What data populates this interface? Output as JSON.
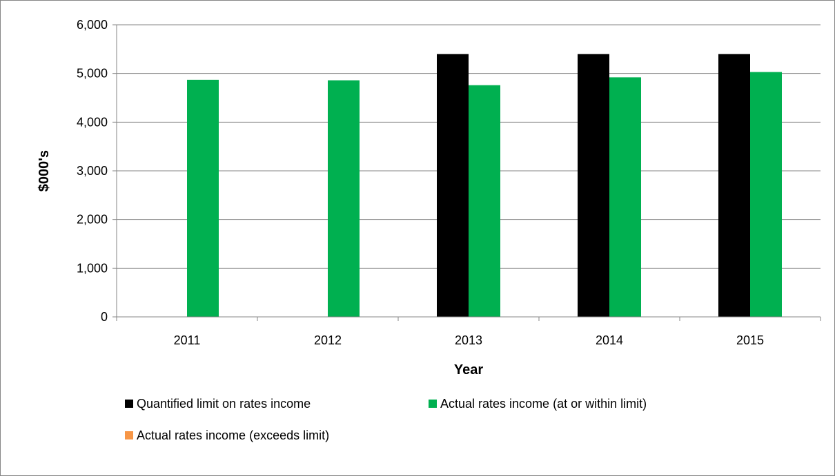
{
  "chart_data": {
    "type": "bar",
    "categories": [
      "2011",
      "2012",
      "2013",
      "2014",
      "2015"
    ],
    "series": [
      {
        "name": "Quantified limit on rates income",
        "color": "#000000",
        "values": [
          null,
          null,
          5400,
          5400,
          5400
        ]
      },
      {
        "name": "Actual rates income (at or within limit)",
        "color": "#00b050",
        "values": [
          4870,
          4860,
          4760,
          4920,
          5030
        ]
      },
      {
        "name": "Actual rates income (exceeds limit)",
        "color": "#f79646",
        "values": [
          null,
          null,
          null,
          null,
          null
        ]
      }
    ],
    "xlabel": "Year",
    "ylabel": "$000's",
    "ylim": [
      0,
      6000
    ],
    "yticks": [
      "0",
      "1,000",
      "2,000",
      "3,000",
      "4,000",
      "5,000",
      "6,000"
    ],
    "ytick_values": [
      0,
      1000,
      2000,
      3000,
      4000,
      5000,
      6000
    ],
    "grid": true,
    "legend_position": "bottom"
  }
}
